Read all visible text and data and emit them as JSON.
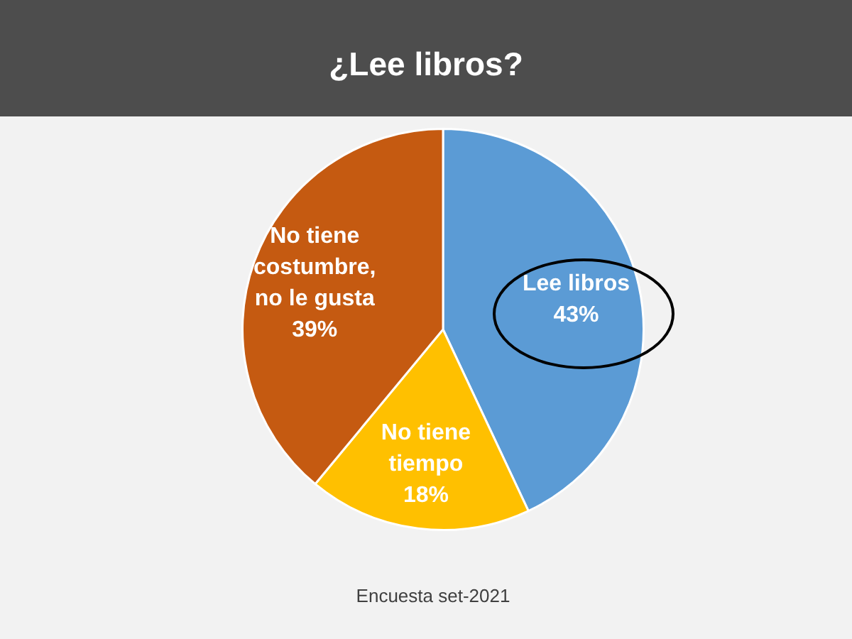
{
  "chart_data": {
    "type": "pie",
    "title": "¿Lee libros?",
    "categories": [
      "Lee libros",
      "No tiene tiempo",
      "No tiene costumbre, no le gusta"
    ],
    "values": [
      43,
      18,
      39
    ],
    "colors": [
      "#5b9bd5",
      "#ffc000",
      "#c55a11"
    ],
    "value_labels": [
      "43%",
      "18%",
      "39%"
    ],
    "annotations": [
      "Encuesta set-2021"
    ]
  }
}
